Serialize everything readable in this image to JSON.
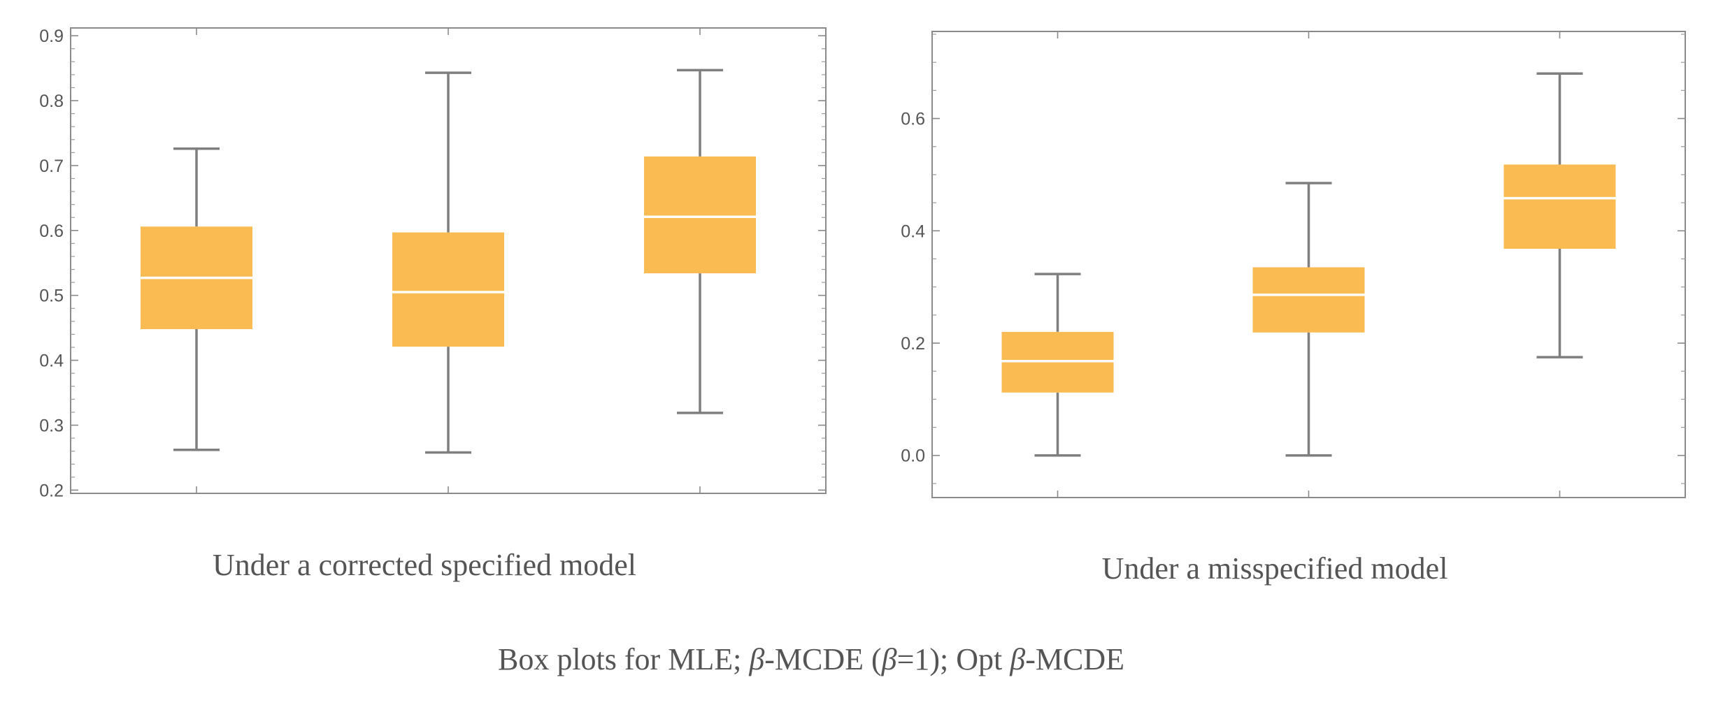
{
  "chart_data": [
    {
      "type": "boxplot",
      "caption": "Under a corrected specified model",
      "ylim": [
        0.195,
        0.912
      ],
      "yticks": [
        0.2,
        0.3,
        0.4,
        0.5,
        0.6,
        0.7,
        0.8,
        0.9
      ],
      "ytick_labels": [
        "0.2",
        "0.3",
        "0.4",
        "0.5",
        "0.6",
        "0.7",
        "0.8",
        "0.9"
      ],
      "minor_step": 0.02,
      "box_color": "#FBBB53",
      "whisker_color": "#7f7f7f",
      "categories": [
        "MLE",
        "β-MCDE (β=1)",
        "Opt β-MCDE"
      ],
      "boxes": [
        {
          "min": 0.262,
          "q1": 0.448,
          "median": 0.527,
          "q3": 0.606,
          "max": 0.726
        },
        {
          "min": 0.258,
          "q1": 0.421,
          "median": 0.505,
          "q3": 0.597,
          "max": 0.843
        },
        {
          "min": 0.319,
          "q1": 0.534,
          "median": 0.621,
          "q3": 0.714,
          "max": 0.847
        }
      ]
    },
    {
      "type": "boxplot",
      "caption": "Under a misspecified model",
      "ylim": [
        -0.075,
        0.755
      ],
      "yticks": [
        0.0,
        0.2,
        0.4,
        0.6
      ],
      "ytick_labels": [
        "0.0",
        "0.2",
        "0.4",
        "0.6"
      ],
      "minor_step": 0.05,
      "box_color": "#FBBB53",
      "whisker_color": "#7f7f7f",
      "categories": [
        "MLE",
        "β-MCDE (β=1)",
        "Opt β-MCDE"
      ],
      "boxes": [
        {
          "min": 0.0,
          "q1": 0.112,
          "median": 0.168,
          "q3": 0.22,
          "max": 0.323
        },
        {
          "min": 0.0,
          "q1": 0.219,
          "median": 0.286,
          "q3": 0.335,
          "max": 0.485
        },
        {
          "min": 0.175,
          "q1": 0.368,
          "median": 0.458,
          "q3": 0.518,
          "max": 0.68
        }
      ]
    }
  ],
  "figure_caption": {
    "part1": "Box plots for MLE; ",
    "beta1": "β",
    "part2": "-MCDE (",
    "beta2": "β",
    "part3": "=1); Opt ",
    "beta3": "β",
    "part4": "-MCDE"
  }
}
